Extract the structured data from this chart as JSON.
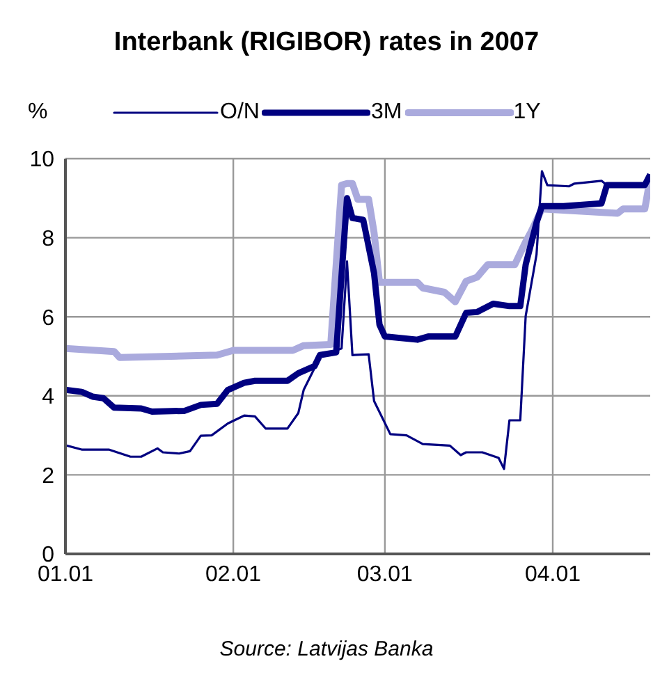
{
  "chart_data": {
    "type": "line",
    "title": "Interbank (RIGIBOR) rates in 2007",
    "ylabel": "%",
    "annotations": [
      "Source: Latvijas Banka"
    ],
    "legend": "top",
    "grid": true,
    "marker": "none",
    "line_style": "solid",
    "xlim": [
      "2007-01-01",
      "2007-04-19"
    ],
    "xticks": [
      {
        "value": "2007-01-01",
        "label": "01.01"
      },
      {
        "value": "2007-02-01",
        "label": "02.01"
      },
      {
        "value": "2007-03-01",
        "label": "03.01"
      },
      {
        "value": "2007-04-01",
        "label": "04.01"
      }
    ],
    "ylim": [
      0,
      10
    ],
    "yticks": [
      0,
      2,
      4,
      6,
      8,
      10
    ],
    "series": [
      {
        "name": "O/N",
        "color": "#000080",
        "x": [
          "2007-01-01",
          "2007-01-04",
          "2007-01-09",
          "2007-01-13",
          "2007-01-15",
          "2007-01-18",
          "2007-01-19",
          "2007-01-22",
          "2007-01-24",
          "2007-01-26",
          "2007-01-28",
          "2007-01-31",
          "2007-02-03",
          "2007-02-05",
          "2007-02-07",
          "2007-02-11",
          "2007-02-13",
          "2007-02-14",
          "2007-02-16",
          "2007-02-17",
          "2007-02-20",
          "2007-02-21",
          "2007-02-22",
          "2007-02-23",
          "2007-02-26",
          "2007-02-27",
          "2007-03-02",
          "2007-03-05",
          "2007-03-08",
          "2007-03-13",
          "2007-03-15",
          "2007-03-16",
          "2007-03-19",
          "2007-03-22",
          "2007-03-23",
          "2007-03-24",
          "2007-03-26",
          "2007-03-27",
          "2007-03-29",
          "2007-03-30",
          "2007-03-31",
          "2007-04-04",
          "2007-04-05",
          "2007-04-10",
          "2007-04-11",
          "2007-04-18",
          "2007-04-19"
        ],
        "values": [
          2.75,
          2.64,
          2.64,
          2.46,
          2.46,
          2.67,
          2.57,
          2.54,
          2.6,
          2.99,
          3.0,
          3.3,
          3.5,
          3.48,
          3.17,
          3.17,
          3.56,
          4.15,
          4.7,
          5.0,
          5.15,
          5.2,
          7.4,
          5.03,
          5.05,
          3.87,
          3.03,
          3.0,
          2.78,
          2.74,
          2.5,
          2.57,
          2.57,
          2.43,
          2.15,
          3.38,
          3.38,
          6.02,
          7.57,
          9.68,
          9.33,
          9.3,
          9.37,
          9.44,
          9.33,
          9.33,
          9.6
        ]
      },
      {
        "name": "3M",
        "color": "#000080",
        "x": [
          "2007-01-01",
          "2007-01-04",
          "2007-01-06",
          "2007-01-08",
          "2007-01-10",
          "2007-01-15",
          "2007-01-17",
          "2007-01-23",
          "2007-01-26",
          "2007-01-29",
          "2007-01-31",
          "2007-02-03",
          "2007-02-05",
          "2007-02-11",
          "2007-02-13",
          "2007-02-16",
          "2007-02-17",
          "2007-02-20",
          "2007-02-22",
          "2007-02-23",
          "2007-02-25",
          "2007-02-27",
          "2007-02-28",
          "2007-03-01",
          "2007-03-07",
          "2007-03-09",
          "2007-03-14",
          "2007-03-16",
          "2007-03-18",
          "2007-03-21",
          "2007-03-24",
          "2007-03-26",
          "2007-03-27",
          "2007-03-29",
          "2007-03-30",
          "2007-04-03",
          "2007-04-10",
          "2007-04-11",
          "2007-04-18",
          "2007-04-19"
        ],
        "values": [
          4.15,
          4.1,
          3.98,
          3.94,
          3.7,
          3.68,
          3.6,
          3.62,
          3.77,
          3.8,
          4.15,
          4.33,
          4.38,
          4.38,
          4.57,
          4.75,
          5.03,
          5.1,
          9.0,
          8.5,
          8.45,
          7.1,
          5.8,
          5.5,
          5.42,
          5.5,
          5.5,
          6.1,
          6.12,
          6.33,
          6.27,
          6.27,
          7.32,
          8.38,
          8.8,
          8.8,
          8.87,
          9.33,
          9.33,
          9.6
        ]
      },
      {
        "name": "1Y",
        "color": "#aaaadd",
        "x": [
          "2007-01-01",
          "2007-01-10",
          "2007-01-11",
          "2007-01-29",
          "2007-02-01",
          "2007-02-12",
          "2007-02-14",
          "2007-02-19",
          "2007-02-21",
          "2007-02-22",
          "2007-02-23",
          "2007-02-24",
          "2007-02-26",
          "2007-02-27",
          "2007-02-28",
          "2007-03-07",
          "2007-03-08",
          "2007-03-12",
          "2007-03-14",
          "2007-03-16",
          "2007-03-18",
          "2007-03-20",
          "2007-03-25",
          "2007-03-27",
          "2007-03-28",
          "2007-03-30",
          "2007-04-13",
          "2007-04-14",
          "2007-04-18",
          "2007-04-19"
        ],
        "values": [
          5.2,
          5.12,
          4.97,
          5.03,
          5.15,
          5.15,
          5.27,
          5.3,
          9.33,
          9.37,
          9.37,
          8.97,
          8.97,
          8.13,
          6.87,
          6.87,
          6.73,
          6.62,
          6.38,
          6.9,
          7.0,
          7.32,
          7.32,
          7.9,
          8.15,
          8.73,
          8.62,
          8.73,
          8.73,
          9.5
        ]
      }
    ]
  }
}
